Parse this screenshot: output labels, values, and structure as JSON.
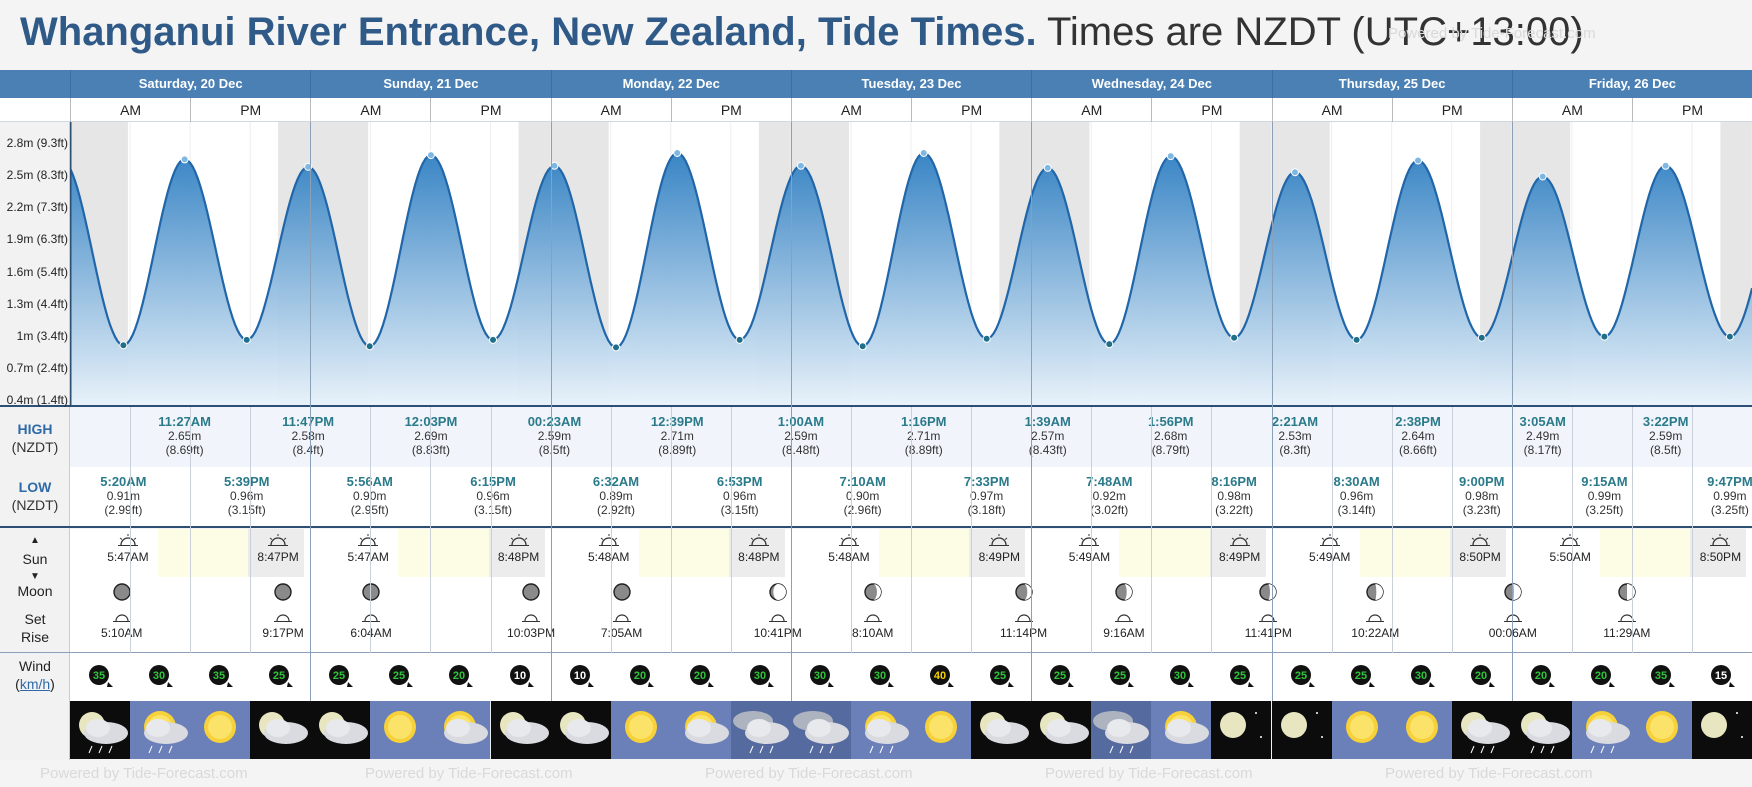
{
  "header": {
    "title_place": "Whanganui River Entrance, New Zealand, Tide Times.",
    "title_tz": " Times are NZDT (UTC+13:00)",
    "watermark": "Powered by Tide-Forecast.com"
  },
  "days": [
    "Saturday, 20 Dec",
    "Sunday, 21 Dec",
    "Monday, 22 Dec",
    "Tuesday, 23 Dec",
    "Wednesday, 24 Dec",
    "Thursday, 25 Dec",
    "Friday, 26 Dec"
  ],
  "am_label": "AM",
  "pm_label": "PM",
  "y_axis_labels": [
    "2.8m (9.3ft)",
    "2.5m (8.3ft)",
    "2.2m (7.3ft)",
    "1.9m (6.3ft)",
    "1.6m (5.4ft)",
    "1.3m (4.4ft)",
    "1m (3.4ft)",
    "0.7m (2.4ft)",
    "0.4m (1.4ft)"
  ],
  "labels": {
    "high": "HIGH",
    "low": "LOW",
    "tz": "(NZDT)",
    "sun": "Sun",
    "moon": "Moon",
    "set": "Set",
    "rise": "Rise",
    "wind": "Wind",
    "wind_unit": "km/h"
  },
  "high_tides": [
    {
      "time": "11:27AM",
      "m": "2.65m",
      "ft": "(8.69ft)"
    },
    {
      "time": "11:47PM",
      "m": "2.58m",
      "ft": "(8.4ft)"
    },
    {
      "time": "12:03PM",
      "m": "2.69m",
      "ft": "(8.83ft)"
    },
    {
      "time": "00:23AM",
      "m": "2.59m",
      "ft": "(8.5ft)"
    },
    {
      "time": "12:39PM",
      "m": "2.71m",
      "ft": "(8.89ft)"
    },
    {
      "time": "1:00AM",
      "m": "2.59m",
      "ft": "(8.48ft)"
    },
    {
      "time": "1:16PM",
      "m": "2.71m",
      "ft": "(8.89ft)"
    },
    {
      "time": "1:39AM",
      "m": "2.57m",
      "ft": "(8.43ft)"
    },
    {
      "time": "1:56PM",
      "m": "2.68m",
      "ft": "(8.79ft)"
    },
    {
      "time": "2:21AM",
      "m": "2.53m",
      "ft": "(8.3ft)"
    },
    {
      "time": "2:38PM",
      "m": "2.64m",
      "ft": "(8.66ft)"
    },
    {
      "time": "3:05AM",
      "m": "2.49m",
      "ft": "(8.17ft)"
    },
    {
      "time": "3:22PM",
      "m": "2.59m",
      "ft": "(8.5ft)"
    }
  ],
  "low_tides": [
    {
      "time": "5:20AM",
      "m": "0.91m",
      "ft": "(2.99ft)"
    },
    {
      "time": "5:39PM",
      "m": "0.96m",
      "ft": "(3.15ft)"
    },
    {
      "time": "5:56AM",
      "m": "0.90m",
      "ft": "(2.95ft)"
    },
    {
      "time": "6:15PM",
      "m": "0.96m",
      "ft": "(3.15ft)"
    },
    {
      "time": "6:32AM",
      "m": "0.89m",
      "ft": "(2.92ft)"
    },
    {
      "time": "6:53PM",
      "m": "0.96m",
      "ft": "(3.15ft)"
    },
    {
      "time": "7:10AM",
      "m": "0.90m",
      "ft": "(2.96ft)"
    },
    {
      "time": "7:33PM",
      "m": "0.97m",
      "ft": "(3.18ft)"
    },
    {
      "time": "7:48AM",
      "m": "0.92m",
      "ft": "(3.02ft)"
    },
    {
      "time": "8:16PM",
      "m": "0.98m",
      "ft": "(3.22ft)"
    },
    {
      "time": "8:30AM",
      "m": "0.96m",
      "ft": "(3.14ft)"
    },
    {
      "time": "9:00PM",
      "m": "0.98m",
      "ft": "(3.23ft)"
    },
    {
      "time": "9:15AM",
      "m": "0.99m",
      "ft": "(3.25ft)"
    },
    {
      "time": "9:47PM",
      "m": "0.99m",
      "ft": "(3.25ft)"
    }
  ],
  "sunrise": [
    "5:47AM",
    "5:47AM",
    "5:48AM",
    "5:48AM",
    "5:49AM",
    "5:49AM",
    "5:50AM"
  ],
  "sunset": [
    "8:47PM",
    "8:48PM",
    "8:48PM",
    "8:49PM",
    "8:49PM",
    "8:50PM",
    "8:50PM"
  ],
  "moon_events": [
    {
      "kind": "rise",
      "time": "5:10AM"
    },
    {
      "kind": "set",
      "time": "9:17PM"
    },
    {
      "kind": "rise",
      "time": "6:04AM"
    },
    {
      "kind": "set",
      "time": "10:03PM"
    },
    {
      "kind": "rise",
      "time": "7:05AM"
    },
    {
      "kind": "set",
      "time": "10:41PM"
    },
    {
      "kind": "rise",
      "time": "8:10AM"
    },
    {
      "kind": "set",
      "time": "11:14PM"
    },
    {
      "kind": "rise",
      "time": "9:16AM"
    },
    {
      "kind": "set",
      "time": "11:41PM"
    },
    {
      "kind": "rise",
      "time": "10:22AM"
    },
    {
      "kind": "set",
      "time": "00:06AM"
    },
    {
      "kind": "rise",
      "time": "11:29AM"
    }
  ],
  "wind": [
    35,
    30,
    35,
    25,
    25,
    25,
    20,
    10,
    10,
    20,
    20,
    30,
    30,
    30,
    40,
    25,
    25,
    25,
    30,
    25,
    25,
    25,
    30,
    20,
    20,
    20,
    35,
    15
  ],
  "wind_colors": {
    "35": "#2fc43b",
    "30": "#2fc43b",
    "25": "#2fc43b",
    "20": "#2fc43b",
    "10": "#fff",
    "40": "#f2d400",
    "15": "#fff"
  },
  "weather": [
    "night-cloud-rain",
    "sun-cloud-rain",
    "sun",
    "night-cloud",
    "night-cloud",
    "sun",
    "sun-cloud",
    "night-cloud",
    "night-cloud",
    "sun",
    "sun-cloud",
    "cloud-rain",
    "cloud-rain",
    "sun-cloud-rain",
    "sun",
    "night-cloud",
    "night-cloud",
    "cloud-rain",
    "sun-cloud",
    "night-clear",
    "night-clear",
    "sun",
    "sun",
    "night-cloud-rain",
    "night-cloud-rain",
    "sun-cloud-rain",
    "sun",
    "night-clear"
  ]
}
